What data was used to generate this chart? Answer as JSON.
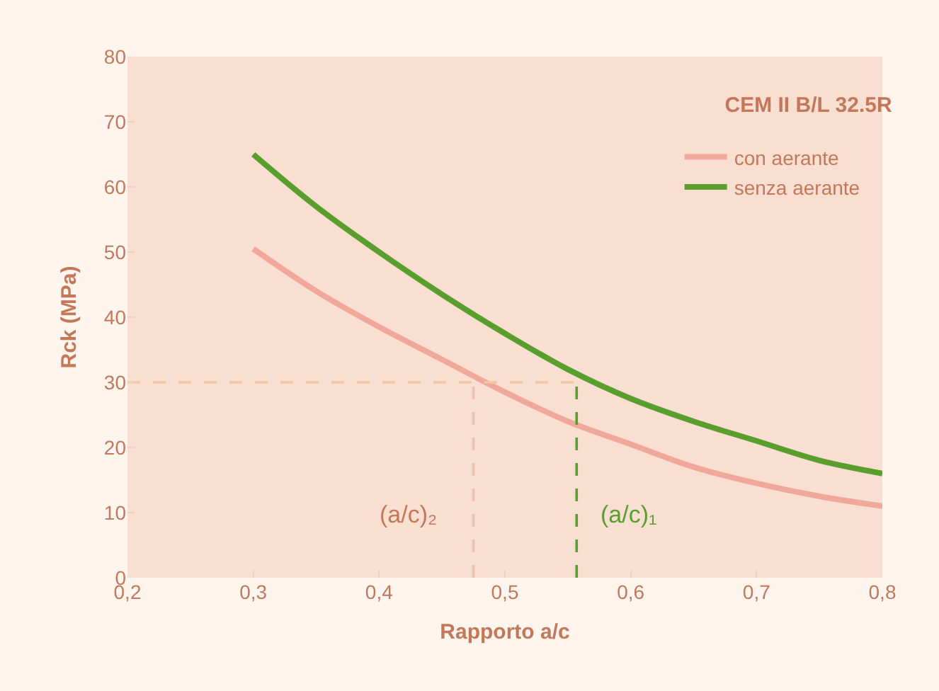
{
  "chart_data": {
    "type": "line",
    "title": "CEM II B/L 32.5R",
    "xlabel": "Rapporto a/c",
    "ylabel": "Rck (MPa)",
    "x": [
      0.3,
      0.35,
      0.4,
      0.45,
      0.5,
      0.55,
      0.6,
      0.65,
      0.7,
      0.75,
      0.8
    ],
    "series": [
      {
        "name": "con aerante",
        "color": "#f0a89a",
        "values": [
          50.5,
          44,
          38.5,
          33.5,
          28.5,
          24,
          20.5,
          17,
          14.5,
          12.5,
          11
        ]
      },
      {
        "name": "senza aerante",
        "color": "#5a9e2e",
        "values": [
          65,
          57,
          50,
          43.5,
          37.5,
          32,
          27.5,
          24,
          21,
          18,
          16
        ]
      },
      {
        "color": "#f0c8a0",
        "x": [
          0.2,
          0.557
        ],
        "values": [
          30,
          30
        ],
        "line_style": "dashed"
      },
      {
        "color": "#f0c0b0",
        "x": [
          0.475,
          0.475
        ],
        "values": [
          0,
          30
        ],
        "line_style": "dashed"
      },
      {
        "color": "#5a9e2e",
        "x": [
          0.557,
          0.557
        ],
        "values": [
          0,
          30
        ],
        "line_style": "dashed"
      }
    ],
    "annotations": [
      "(a/c)₂",
      "(a/c)₁"
    ],
    "xlim": [
      0.2,
      0.8
    ],
    "xticks": [
      {
        "value": 0.2,
        "label": "0,2"
      },
      {
        "value": 0.3,
        "label": "0,3"
      },
      {
        "value": 0.4,
        "label": "0,4"
      },
      {
        "value": 0.5,
        "label": "0,5"
      },
      {
        "value": 0.6,
        "label": "0,6"
      },
      {
        "value": 0.7,
        "label": "0,7"
      },
      {
        "value": 0.8,
        "label": "0,8"
      }
    ],
    "ylim": [
      0,
      80
    ],
    "yticks": [
      0,
      10,
      20,
      30,
      40,
      50,
      60,
      70,
      80
    ],
    "grid": false,
    "legend": "top right",
    "marker": "none",
    "line_style": "solid"
  }
}
